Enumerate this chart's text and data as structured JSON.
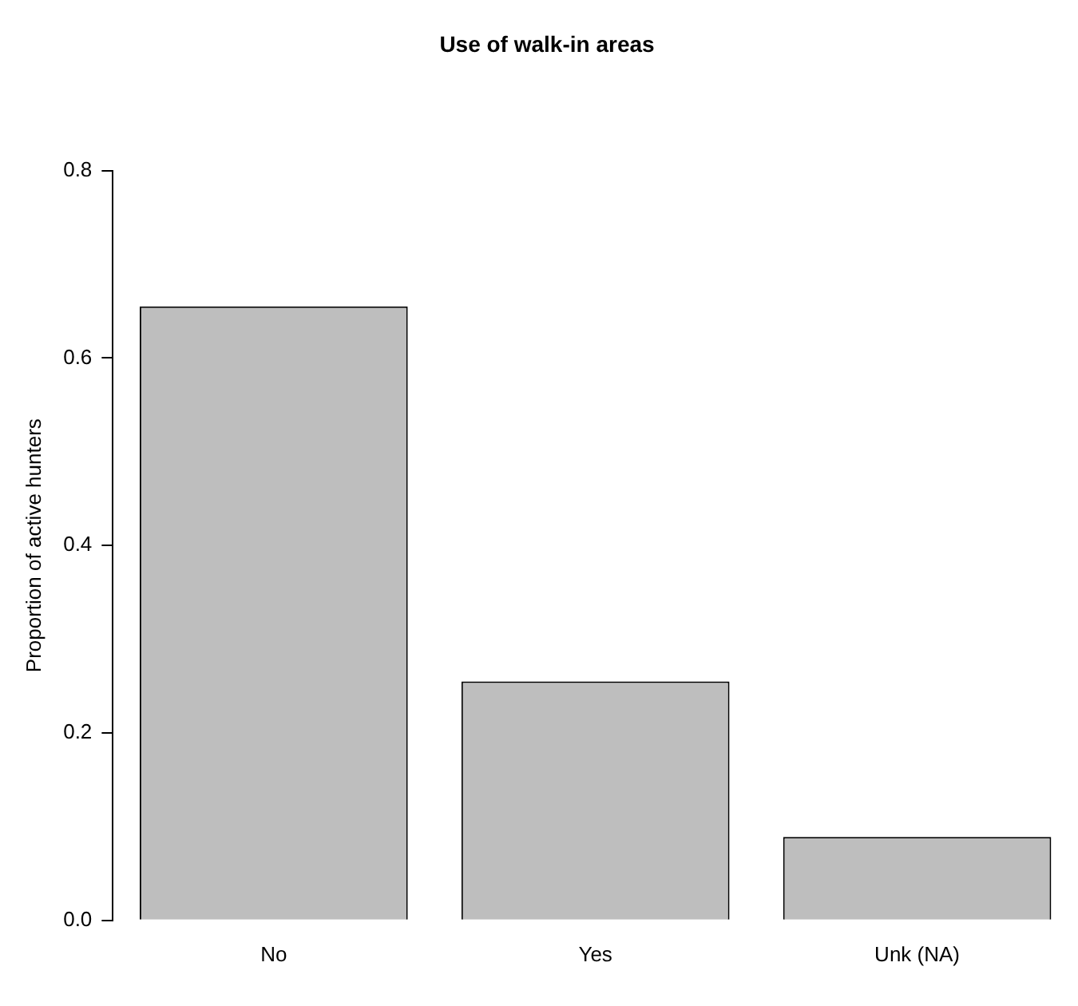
{
  "chart_data": {
    "type": "bar",
    "title": "Use of walk-in areas",
    "ylabel": "Proportion of active hunters",
    "categories": [
      "No",
      "Yes",
      "Unk (NA)"
    ],
    "values": [
      0.655,
      0.255,
      0.089
    ],
    "color": "#bebebe",
    "ylim": [
      0,
      0.8
    ],
    "yticks": [
      {
        "value": 0,
        "label": "0.0"
      },
      {
        "value": 0.2,
        "label": "0.2"
      },
      {
        "value": 0.4,
        "label": "0.4"
      },
      {
        "value": 0.6,
        "label": "0.6"
      },
      {
        "value": 0.8,
        "label": "0.8"
      }
    ],
    "grid": false,
    "legend": false
  }
}
